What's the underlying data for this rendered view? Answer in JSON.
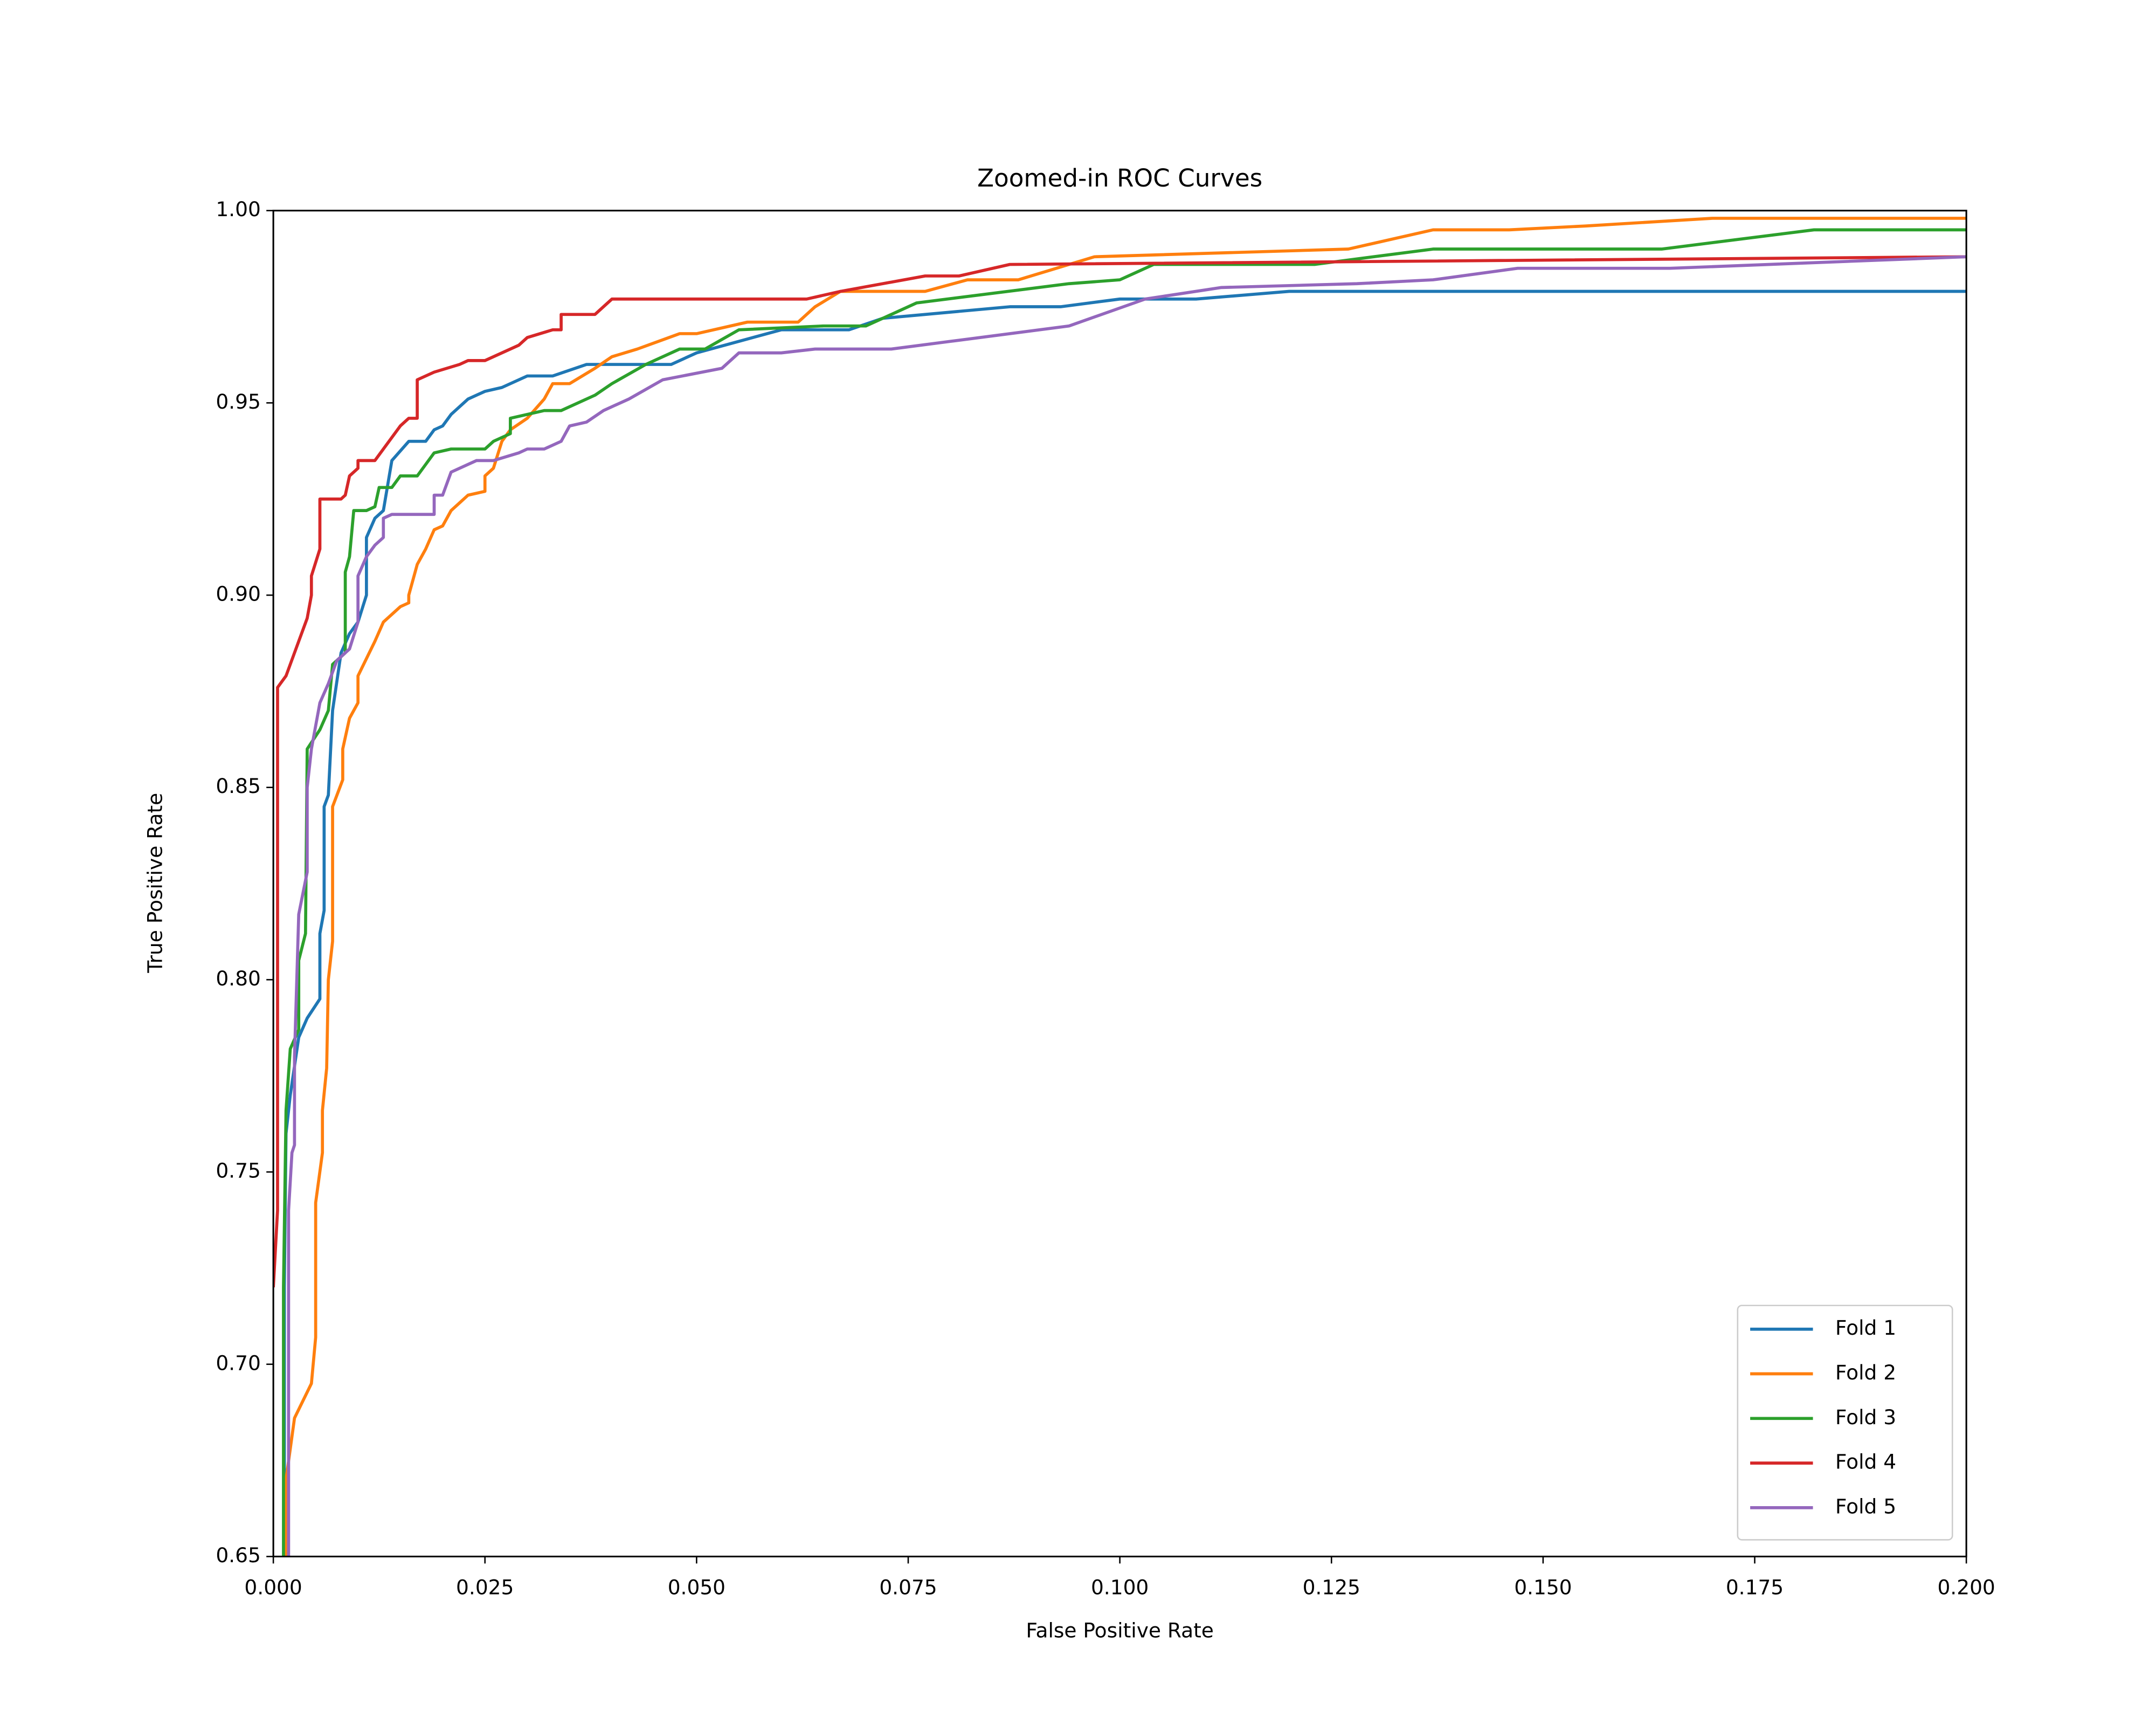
{
  "chart_data": {
    "type": "line",
    "title": "Zoomed-in ROC Curves",
    "x_label": "False Positive Rate",
    "y_label": "True Positive Rate",
    "xlim": [
      0,
      0.2
    ],
    "ylim": [
      0.65,
      1.0
    ],
    "xticks": [
      {
        "value": 0,
        "label": "0.000"
      },
      {
        "value": 0.025,
        "label": "0.025"
      },
      {
        "value": 0.05,
        "label": "0.050"
      },
      {
        "value": 0.075,
        "label": "0.075"
      },
      {
        "value": 0.1,
        "label": "0.100"
      },
      {
        "value": 0.125,
        "label": "0.125"
      },
      {
        "value": 0.15,
        "label": "0.150"
      },
      {
        "value": 0.175,
        "label": "0.175"
      },
      {
        "value": 0.2,
        "label": "0.200"
      }
    ],
    "yticks": [
      {
        "value": 0.65,
        "label": "0.65"
      },
      {
        "value": 0.7,
        "label": "0.70"
      },
      {
        "value": 0.75,
        "label": "0.75"
      },
      {
        "value": 0.8,
        "label": "0.80"
      },
      {
        "value": 0.85,
        "label": "0.85"
      },
      {
        "value": 0.9,
        "label": "0.90"
      },
      {
        "value": 0.95,
        "label": "0.95"
      },
      {
        "value": 1.0,
        "label": "1.00"
      }
    ],
    "grid": false,
    "legend": "lower right",
    "series": [
      {
        "name": "Fold 1",
        "color": "#1f77b4",
        "x": [
          0.0013,
          0.0013,
          0.0015,
          0.002,
          0.003,
          0.004,
          0.0055,
          0.0055,
          0.006,
          0.006,
          0.0065,
          0.007,
          0.008,
          0.009,
          0.01,
          0.011,
          0.011,
          0.012,
          0.013,
          0.014,
          0.016,
          0.018,
          0.019,
          0.02,
          0.021,
          0.023,
          0.025,
          0.027,
          0.03,
          0.033,
          0.037,
          0.047,
          0.05,
          0.06,
          0.068,
          0.072,
          0.087,
          0.093,
          0.1,
          0.109,
          0.12,
          0.2
        ],
        "values": [
          0.65,
          0.72,
          0.76,
          0.77,
          0.785,
          0.79,
          0.795,
          0.812,
          0.818,
          0.845,
          0.848,
          0.87,
          0.885,
          0.89,
          0.893,
          0.9,
          0.915,
          0.92,
          0.922,
          0.935,
          0.94,
          0.94,
          0.943,
          0.944,
          0.947,
          0.951,
          0.953,
          0.954,
          0.957,
          0.957,
          0.96,
          0.96,
          0.963,
          0.969,
          0.969,
          0.972,
          0.975,
          0.975,
          0.977,
          0.977,
          0.979,
          0.979
        ]
      },
      {
        "name": "Fold 2",
        "color": "#ff7f0e",
        "x": [
          0.0015,
          0.0015,
          0.0025,
          0.0045,
          0.005,
          0.005,
          0.0058,
          0.0058,
          0.0063,
          0.0065,
          0.007,
          0.007,
          0.0082,
          0.0082,
          0.009,
          0.01,
          0.01,
          0.012,
          0.013,
          0.014,
          0.015,
          0.016,
          0.016,
          0.017,
          0.018,
          0.019,
          0.02,
          0.021,
          0.022,
          0.023,
          0.025,
          0.025,
          0.026,
          0.027,
          0.028,
          0.03,
          0.032,
          0.033,
          0.035,
          0.038,
          0.04,
          0.043,
          0.048,
          0.05,
          0.056,
          0.062,
          0.064,
          0.067,
          0.077,
          0.082,
          0.088,
          0.097,
          0.127,
          0.137,
          0.146,
          0.155,
          0.17,
          0.2
        ],
        "values": [
          0.65,
          0.67,
          0.686,
          0.695,
          0.707,
          0.742,
          0.755,
          0.766,
          0.777,
          0.8,
          0.81,
          0.845,
          0.852,
          0.86,
          0.868,
          0.872,
          0.879,
          0.888,
          0.893,
          0.895,
          0.897,
          0.898,
          0.9,
          0.908,
          0.912,
          0.917,
          0.918,
          0.922,
          0.924,
          0.926,
          0.927,
          0.931,
          0.933,
          0.94,
          0.943,
          0.946,
          0.951,
          0.955,
          0.955,
          0.959,
          0.962,
          0.964,
          0.968,
          0.968,
          0.971,
          0.971,
          0.975,
          0.979,
          0.979,
          0.982,
          0.982,
          0.988,
          0.99,
          0.995,
          0.995,
          0.996,
          0.998,
          0.998
        ]
      },
      {
        "name": "Fold 3",
        "color": "#2ca02c",
        "x": [
          0.0012,
          0.0012,
          0.0015,
          0.002,
          0.003,
          0.003,
          0.0038,
          0.004,
          0.0055,
          0.0065,
          0.007,
          0.0085,
          0.0085,
          0.009,
          0.0095,
          0.011,
          0.012,
          0.0125,
          0.014,
          0.015,
          0.017,
          0.018,
          0.019,
          0.021,
          0.025,
          0.026,
          0.028,
          0.028,
          0.032,
          0.034,
          0.038,
          0.04,
          0.044,
          0.048,
          0.051,
          0.055,
          0.065,
          0.07,
          0.076,
          0.094,
          0.1,
          0.104,
          0.123,
          0.137,
          0.164,
          0.182,
          0.2
        ],
        "values": [
          0.65,
          0.72,
          0.766,
          0.782,
          0.787,
          0.805,
          0.812,
          0.86,
          0.865,
          0.87,
          0.882,
          0.885,
          0.906,
          0.91,
          0.922,
          0.922,
          0.923,
          0.928,
          0.928,
          0.931,
          0.931,
          0.934,
          0.937,
          0.938,
          0.938,
          0.94,
          0.942,
          0.946,
          0.948,
          0.948,
          0.952,
          0.955,
          0.96,
          0.964,
          0.964,
          0.969,
          0.97,
          0.97,
          0.976,
          0.981,
          0.982,
          0.986,
          0.986,
          0.99,
          0.99,
          0.995,
          0.995
        ]
      },
      {
        "name": "Fold 4",
        "color": "#d62728",
        "x": [
          0,
          0.0005,
          0.0005,
          0.0015,
          0.002,
          0.003,
          0.004,
          0.0045,
          0.0045,
          0.0055,
          0.0055,
          0.008,
          0.0085,
          0.009,
          0.01,
          0.01,
          0.012,
          0.013,
          0.014,
          0.015,
          0.016,
          0.017,
          0.017,
          0.019,
          0.022,
          0.023,
          0.025,
          0.027,
          0.029,
          0.03,
          0.033,
          0.034,
          0.034,
          0.038,
          0.04,
          0.063,
          0.067,
          0.077,
          0.081,
          0.087,
          0.2
        ],
        "values": [
          0.72,
          0.74,
          0.876,
          0.879,
          0.882,
          0.888,
          0.894,
          0.9,
          0.905,
          0.912,
          0.925,
          0.925,
          0.926,
          0.931,
          0.933,
          0.935,
          0.935,
          0.938,
          0.941,
          0.944,
          0.946,
          0.946,
          0.956,
          0.958,
          0.96,
          0.961,
          0.961,
          0.963,
          0.965,
          0.967,
          0.969,
          0.969,
          0.973,
          0.973,
          0.977,
          0.977,
          0.979,
          0.983,
          0.983,
          0.986,
          0.988
        ]
      },
      {
        "name": "Fold 5",
        "color": "#9467bd",
        "x": [
          0.0018,
          0.0018,
          0.0022,
          0.0025,
          0.0025,
          0.003,
          0.004,
          0.004,
          0.0045,
          0.0055,
          0.0065,
          0.0075,
          0.009,
          0.01,
          0.01,
          0.011,
          0.012,
          0.013,
          0.013,
          0.014,
          0.019,
          0.019,
          0.02,
          0.021,
          0.023,
          0.024,
          0.026,
          0.029,
          0.03,
          0.032,
          0.034,
          0.035,
          0.037,
          0.039,
          0.042,
          0.046,
          0.053,
          0.055,
          0.06,
          0.064,
          0.073,
          0.08,
          0.094,
          0.103,
          0.112,
          0.128,
          0.137,
          0.147,
          0.165,
          0.2
        ],
        "values": [
          0.65,
          0.74,
          0.755,
          0.757,
          0.78,
          0.817,
          0.828,
          0.85,
          0.86,
          0.872,
          0.877,
          0.883,
          0.886,
          0.893,
          0.905,
          0.91,
          0.913,
          0.915,
          0.92,
          0.921,
          0.921,
          0.926,
          0.926,
          0.932,
          0.934,
          0.935,
          0.935,
          0.937,
          0.938,
          0.938,
          0.94,
          0.944,
          0.945,
          0.948,
          0.951,
          0.956,
          0.959,
          0.963,
          0.963,
          0.964,
          0.964,
          0.966,
          0.97,
          0.977,
          0.98,
          0.981,
          0.982,
          0.985,
          0.985,
          0.988
        ]
      }
    ]
  }
}
